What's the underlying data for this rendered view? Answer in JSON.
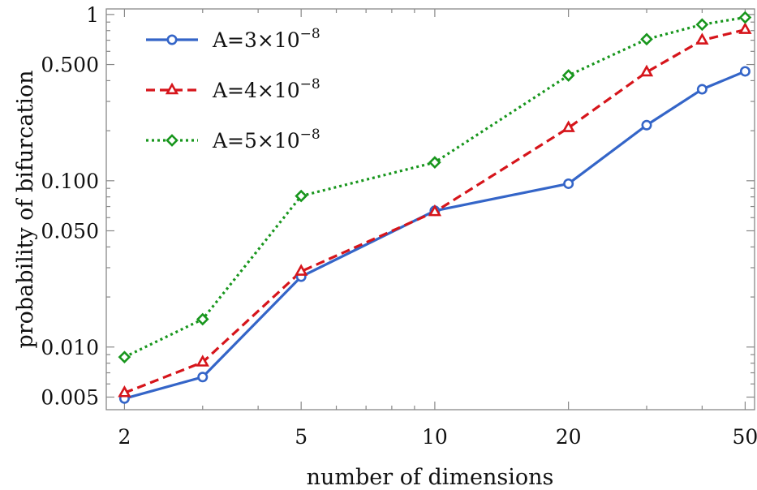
{
  "chart_data": {
    "type": "line",
    "title": "",
    "xlabel": "number of dimensions",
    "ylabel": "probability of bifurcation",
    "x_scale": "log",
    "y_scale": "log",
    "xlim": [
      1.82,
      52.5
    ],
    "ylim": [
      0.0042,
      1.08
    ],
    "x_ticks": [
      2,
      5,
      10,
      20,
      50
    ],
    "x_tick_labels": [
      "2",
      "5",
      "10",
      "20",
      "50"
    ],
    "y_ticks": [
      0.005,
      0.01,
      0.05,
      0.1,
      0.5,
      1
    ],
    "y_tick_labels": [
      "0.005",
      "0.010",
      "0.050",
      "0.100",
      "0.500",
      "1"
    ],
    "grid": false,
    "legend_position": "top-left",
    "x": [
      2,
      3,
      5,
      10,
      20,
      30,
      40,
      50
    ],
    "series": [
      {
        "name": "A=3×10",
        "name_exponent": "−8",
        "color": "#3465c8",
        "dash": "solid",
        "marker": "circle",
        "values": [
          0.0049,
          0.0066,
          0.0265,
          0.066,
          0.096,
          0.216,
          0.355,
          0.455
        ]
      },
      {
        "name": "A=4×10",
        "name_exponent": "−8",
        "color": "#d6151b",
        "dash": "dashed",
        "marker": "triangle",
        "values": [
          0.0053,
          0.0081,
          0.0285,
          0.065,
          0.208,
          0.45,
          0.7,
          0.81
        ]
      },
      {
        "name": "A=5×10",
        "name_exponent": "−8",
        "color": "#18961d",
        "dash": "dotted",
        "marker": "diamond",
        "values": [
          0.0087,
          0.0147,
          0.081,
          0.129,
          0.43,
          0.71,
          0.87,
          0.96
        ]
      }
    ]
  }
}
